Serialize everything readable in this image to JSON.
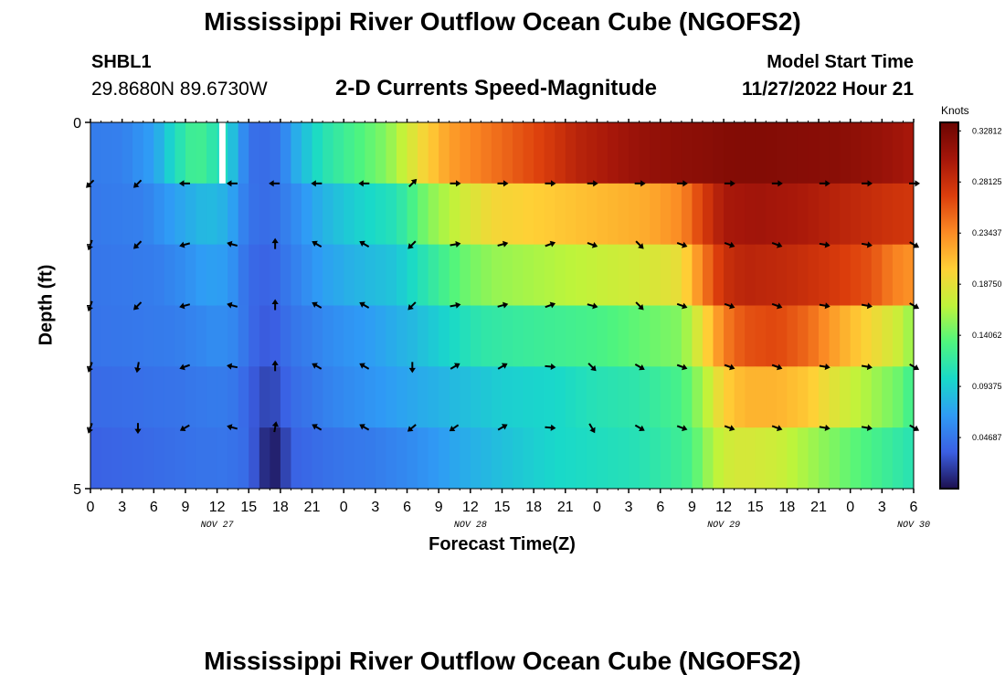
{
  "page": {
    "title": "Mississippi River Outflow Ocean Cube (NGOFS2)",
    "title_repeat": "Mississippi River Outflow Ocean Cube (NGOFS2)",
    "station_id": "SHBL1",
    "station_coords": "29.8680N  89.6730W",
    "subtitle": "2-D Currents Speed-Magnitude",
    "model_start_label": "Model Start Time",
    "model_start_value": "11/27/2022 Hour 21"
  },
  "chart_data": {
    "type": "heatmap",
    "title": "2-D Currents Speed-Magnitude",
    "xlabel": "Forecast Time(Z)",
    "ylabel": "Depth (ft)",
    "y_ticks": [
      "0",
      "5"
    ],
    "ylim": [
      0,
      5
    ],
    "x_tick_labels": [
      "0",
      "3",
      "6",
      "9",
      "12",
      "15",
      "18",
      "21",
      "0",
      "3",
      "6",
      "9",
      "12",
      "15",
      "18",
      "21",
      "0",
      "3",
      "6",
      "9",
      "12",
      "15",
      "18",
      "21",
      "0",
      "3",
      "6"
    ],
    "day_labels": [
      {
        "text": "NOV 27",
        "hour": 12
      },
      {
        "text": "NOV 28",
        "hour": 36
      },
      {
        "text": "NOV 29",
        "hour": 60
      },
      {
        "text": "NOV 30",
        "hour": 78
      }
    ],
    "time_range_hours": [
      0,
      78
    ],
    "time_step_hours": 1,
    "colorbar": {
      "unit": "Knots",
      "min": 0.0,
      "max": 0.3359,
      "tick_values": [
        0.04687,
        0.09375,
        0.14062,
        0.1875,
        0.23437,
        0.28125,
        0.32812
      ],
      "tick_labels": [
        "0.04687",
        "0.09375",
        "0.14062",
        "0.18750",
        "0.23437",
        "0.28125",
        "0.32812"
      ],
      "colors": [
        "#1c0f4e",
        "#3b5fe3",
        "#2f9bf5",
        "#19d9c9",
        "#4ff57e",
        "#bff43a",
        "#ffd036",
        "#fb8a24",
        "#dc3e0c",
        "#a5160a",
        "#6b0502"
      ]
    },
    "missing_gap_hours": [
      12.2,
      12.8
    ],
    "layers": [
      {
        "depth_band": 1,
        "profile": [
          [
            0,
            0.05
          ],
          [
            3,
            0.052
          ],
          [
            6,
            0.07
          ],
          [
            8,
            0.105
          ],
          [
            10,
            0.13
          ],
          [
            13,
            0.1
          ],
          [
            15,
            0.045
          ],
          [
            16,
            0.04
          ],
          [
            18,
            0.046
          ],
          [
            19,
            0.07
          ],
          [
            22,
            0.11
          ],
          [
            25,
            0.13
          ],
          [
            28,
            0.15
          ],
          [
            31,
            0.19
          ],
          [
            34,
            0.225
          ],
          [
            37,
            0.24
          ],
          [
            40,
            0.255
          ],
          [
            43,
            0.27
          ],
          [
            46,
            0.29
          ],
          [
            49,
            0.3
          ],
          [
            52,
            0.31
          ],
          [
            55,
            0.315
          ],
          [
            58,
            0.318
          ],
          [
            61,
            0.322
          ],
          [
            64,
            0.322
          ],
          [
            67,
            0.32
          ],
          [
            71,
            0.318
          ],
          [
            75,
            0.31
          ],
          [
            78,
            0.3
          ]
        ]
      },
      {
        "depth_band": 2,
        "profile": [
          [
            0,
            0.048
          ],
          [
            5,
            0.052
          ],
          [
            8,
            0.07
          ],
          [
            11,
            0.085
          ],
          [
            13,
            0.078
          ],
          [
            15,
            0.045
          ],
          [
            17,
            0.04
          ],
          [
            19,
            0.055
          ],
          [
            22,
            0.08
          ],
          [
            25,
            0.095
          ],
          [
            29,
            0.11
          ],
          [
            32,
            0.15
          ],
          [
            35,
            0.175
          ],
          [
            38,
            0.195
          ],
          [
            41,
            0.2
          ],
          [
            44,
            0.205
          ],
          [
            47,
            0.21
          ],
          [
            50,
            0.215
          ],
          [
            53,
            0.22
          ],
          [
            56,
            0.235
          ],
          [
            58,
            0.27
          ],
          [
            60,
            0.3
          ],
          [
            63,
            0.305
          ],
          [
            67,
            0.3
          ],
          [
            71,
            0.29
          ],
          [
            75,
            0.28
          ],
          [
            78,
            0.275
          ]
        ]
      },
      {
        "depth_band": 3,
        "profile": [
          [
            0,
            0.046
          ],
          [
            6,
            0.05
          ],
          [
            9,
            0.06
          ],
          [
            11,
            0.07
          ],
          [
            13,
            0.068
          ],
          [
            15,
            0.04
          ],
          [
            17,
            0.035
          ],
          [
            19,
            0.05
          ],
          [
            22,
            0.07
          ],
          [
            25,
            0.08
          ],
          [
            29,
            0.09
          ],
          [
            32,
            0.115
          ],
          [
            35,
            0.14
          ],
          [
            38,
            0.155
          ],
          [
            41,
            0.16
          ],
          [
            44,
            0.165
          ],
          [
            47,
            0.17
          ],
          [
            50,
            0.175
          ],
          [
            53,
            0.18
          ],
          [
            56,
            0.19
          ],
          [
            58,
            0.24
          ],
          [
            60,
            0.28
          ],
          [
            62,
            0.29
          ],
          [
            66,
            0.285
          ],
          [
            70,
            0.275
          ],
          [
            74,
            0.26
          ],
          [
            76,
            0.24
          ],
          [
            78,
            0.23
          ]
        ]
      },
      {
        "depth_band": 4,
        "profile": [
          [
            0,
            0.045
          ],
          [
            8,
            0.05
          ],
          [
            12,
            0.06
          ],
          [
            14,
            0.055
          ],
          [
            15,
            0.04
          ],
          [
            17,
            0.03
          ],
          [
            19,
            0.045
          ],
          [
            23,
            0.06
          ],
          [
            27,
            0.07
          ],
          [
            31,
            0.085
          ],
          [
            34,
            0.1
          ],
          [
            37,
            0.115
          ],
          [
            40,
            0.12
          ],
          [
            44,
            0.125
          ],
          [
            48,
            0.13
          ],
          [
            52,
            0.14
          ],
          [
            56,
            0.15
          ],
          [
            58,
            0.19
          ],
          [
            60,
            0.24
          ],
          [
            62,
            0.26
          ],
          [
            65,
            0.265
          ],
          [
            68,
            0.25
          ],
          [
            71,
            0.22
          ],
          [
            74,
            0.195
          ],
          [
            77,
            0.17
          ],
          [
            78,
            0.15
          ]
        ]
      },
      {
        "depth_band": 5,
        "profile": [
          [
            0,
            0.04
          ],
          [
            8,
            0.045
          ],
          [
            12,
            0.05
          ],
          [
            14,
            0.046
          ],
          [
            15,
            0.035
          ],
          [
            17,
            0.02
          ],
          [
            19,
            0.04
          ],
          [
            23,
            0.055
          ],
          [
            27,
            0.065
          ],
          [
            31,
            0.075
          ],
          [
            35,
            0.085
          ],
          [
            39,
            0.095
          ],
          [
            44,
            0.1
          ],
          [
            48,
            0.11
          ],
          [
            52,
            0.115
          ],
          [
            56,
            0.13
          ],
          [
            58,
            0.16
          ],
          [
            60,
            0.2
          ],
          [
            62,
            0.215
          ],
          [
            65,
            0.215
          ],
          [
            68,
            0.205
          ],
          [
            71,
            0.18
          ],
          [
            74,
            0.16
          ],
          [
            77,
            0.14
          ],
          [
            78,
            0.12
          ]
        ]
      },
      {
        "depth_band": 6,
        "profile": [
          [
            0,
            0.035
          ],
          [
            6,
            0.04
          ],
          [
            10,
            0.045
          ],
          [
            13,
            0.046
          ],
          [
            15,
            0.04
          ],
          [
            16,
            0.02
          ],
          [
            17,
            0.005
          ],
          [
            18,
            0.01
          ],
          [
            19,
            0.035
          ],
          [
            23,
            0.045
          ],
          [
            27,
            0.05
          ],
          [
            31,
            0.06
          ],
          [
            35,
            0.075
          ],
          [
            40,
            0.09
          ],
          [
            44,
            0.1
          ],
          [
            48,
            0.105
          ],
          [
            52,
            0.11
          ],
          [
            55,
            0.12
          ],
          [
            57,
            0.13
          ],
          [
            58,
            0.15
          ],
          [
            60,
            0.175
          ],
          [
            62,
            0.18
          ],
          [
            65,
            0.175
          ],
          [
            68,
            0.16
          ],
          [
            71,
            0.145
          ],
          [
            74,
            0.13
          ],
          [
            77,
            0.115
          ],
          [
            78,
            0.11
          ]
        ]
      }
    ],
    "vectors": {
      "hours": [
        0,
        4.5,
        9,
        13.5,
        17.5,
        21.5,
        26,
        30.5,
        34.5,
        39,
        43.5,
        47.5,
        52,
        56,
        60.5,
        65,
        69.5,
        73.5,
        78
      ],
      "rows": [
        {
          "depth_band": 1,
          "angles": [
            225,
            225,
            270,
            270,
            270,
            270,
            270,
            45,
            90,
            90,
            90,
            90,
            90,
            90,
            90,
            90,
            90,
            90,
            90
          ]
        },
        {
          "depth_band": 2,
          "angles": [
            200,
            225,
            255,
            285,
            0,
            300,
            300,
            225,
            80,
            75,
            70,
            110,
            135,
            110,
            110,
            110,
            100,
            100,
            120
          ]
        },
        {
          "depth_band": 3,
          "angles": [
            200,
            225,
            255,
            285,
            0,
            300,
            300,
            225,
            80,
            75,
            70,
            105,
            135,
            110,
            110,
            110,
            100,
            100,
            120
          ]
        },
        {
          "depth_band": 4,
          "angles": [
            200,
            190,
            250,
            280,
            0,
            300,
            300,
            180,
            60,
            60,
            95,
            135,
            120,
            110,
            110,
            110,
            100,
            100,
            120
          ]
        },
        {
          "depth_band": 5,
          "angles": [
            200,
            180,
            240,
            285,
            10,
            300,
            300,
            230,
            235,
            60,
            95,
            150,
            120,
            110,
            110,
            110,
            100,
            100,
            120
          ]
        }
      ]
    }
  }
}
